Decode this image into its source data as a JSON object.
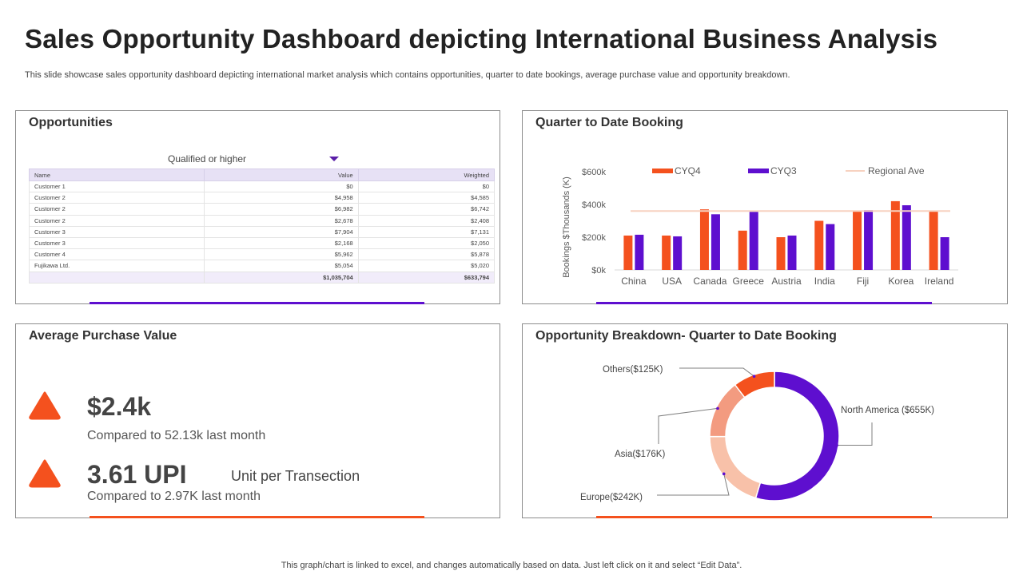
{
  "header": {
    "title": "Sales Opportunity Dashboard depicting International Business Analysis",
    "subtitle": "This slide showcase sales opportunity dashboard depicting international market analysis which contains opportunities, quarter to date bookings, average purchase value and opportunity breakdown."
  },
  "footer": {
    "note": "This graph/chart is linked to excel,  and changes automatically based on data. Just left click on it and select “Edit Data”."
  },
  "colors": {
    "orange": "#f4511e",
    "purple": "#5e0fcf",
    "light_orange": "#f39b80",
    "peach": "#f8c1a9",
    "regional": "#f7d2c0"
  },
  "opportunities": {
    "title": "Opportunities",
    "filter_label": "Qualified  or higher",
    "columns": [
      "Name",
      "Value",
      "Weighted"
    ],
    "rows": [
      [
        "Customer 1",
        "$0",
        "$0"
      ],
      [
        "Customer 2",
        "$4,958",
        "$4,585"
      ],
      [
        "Customer 2",
        "$6,982",
        "$6,742"
      ],
      [
        "Customer 2",
        "$2,678",
        "$2,408"
      ],
      [
        "Customer 3",
        "$7,904",
        "$7,131"
      ],
      [
        "Customer 3",
        "$2,168",
        "$2,050"
      ],
      [
        "Customer 4",
        "$5,962",
        "$5,878"
      ],
      [
        "Fujikawa Ltd.",
        "$5,054",
        "$5,020"
      ]
    ],
    "totals": [
      "",
      "$1,035,704",
      "$633,794"
    ]
  },
  "avg_purchase": {
    "title": "Average Purchase Value",
    "value1": "$2.4k",
    "compare1": "Compared to 52.13k last month",
    "value2": "3.61 UPI",
    "unit_label": "Unit per Transection",
    "compare2": "Compared to 2.97K last month"
  },
  "qtd_title": "Quarter to Date Booking",
  "breakdown_title": "Opportunity Breakdown- Quarter to Date Booking",
  "chart_data": [
    {
      "type": "bar",
      "title": "Quarter to Date Booking",
      "ylabel": "Bookings $Thousands (K)",
      "xlabel": "",
      "ylim": [
        0,
        600
      ],
      "yticks": [
        0,
        200,
        400,
        600
      ],
      "ytick_labels": [
        "$0k",
        "$200k",
        "$400k",
        "$600k"
      ],
      "categories": [
        "China",
        "USA",
        "Canada",
        "Greece",
        "Austria",
        "India",
        "Fiji",
        "Korea",
        "Ireland"
      ],
      "series": [
        {
          "name": "CYQ4",
          "values": [
            210,
            210,
            370,
            240,
            200,
            300,
            360,
            420,
            360
          ]
        },
        {
          "name": "CYQ3",
          "values": [
            215,
            205,
            340,
            355,
            210,
            280,
            365,
            395,
            200
          ]
        }
      ],
      "reference_line": {
        "name": "Regional Ave",
        "value": 360
      },
      "legend_position": "top"
    },
    {
      "type": "pie",
      "title": "Opportunity Breakdown- Quarter to Date Booking",
      "donut": true,
      "slices": [
        {
          "label": "North America ($655K)",
          "value": 655
        },
        {
          "label": "Europe($242K)",
          "value": 242
        },
        {
          "label": "Asia($176K)",
          "value": 176
        },
        {
          "label": "Others($125K)",
          "value": 125
        }
      ]
    }
  ]
}
